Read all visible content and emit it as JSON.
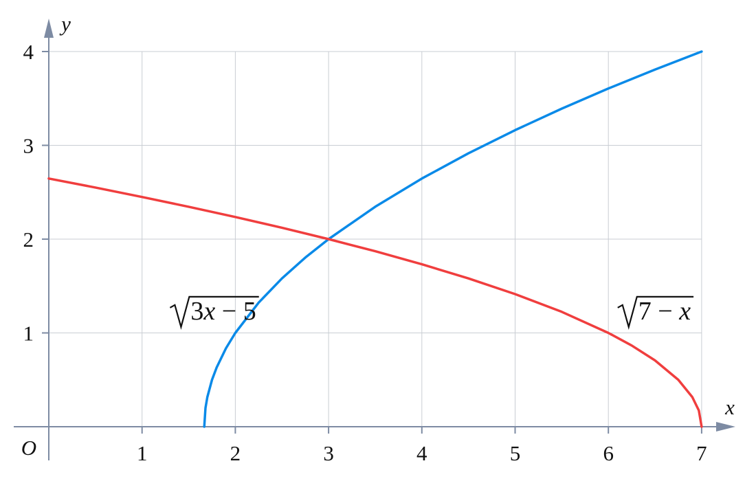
{
  "chart_data": {
    "type": "line",
    "title": "",
    "xlabel": "x",
    "ylabel": "y",
    "origin_label": "O",
    "xlim": [
      0,
      7.35
    ],
    "ylim": [
      0,
      4.2
    ],
    "x_ticks": [
      1,
      2,
      3,
      4,
      5,
      6,
      7
    ],
    "y_ticks": [
      1,
      2,
      3,
      4
    ],
    "grid": true,
    "colors": {
      "axis": "#7d8ba3",
      "grid": "#c9cdd3"
    },
    "series": [
      {
        "label": "√3x − 5",
        "label_parts": [
          "3",
          "x",
          " − 5"
        ],
        "label_anchor": [
          1.3,
          1.1
        ],
        "color": "#0a8ae8",
        "x": [
          1.667,
          1.68,
          1.7,
          1.75,
          1.8,
          1.9,
          2.0,
          2.25,
          2.5,
          2.75,
          3.0,
          3.5,
          4.0,
          4.5,
          5.0,
          5.5,
          6.0,
          6.5,
          7.0
        ],
        "y": [
          0.0,
          0.2,
          0.316,
          0.5,
          0.632,
          0.837,
          1.0,
          1.323,
          1.581,
          1.803,
          2.0,
          2.345,
          2.646,
          2.915,
          3.162,
          3.391,
          3.606,
          3.808,
          4.0
        ]
      },
      {
        "label": "√7 − x",
        "label_parts": [
          "7 − ",
          "x",
          ""
        ],
        "label_anchor": [
          6.1,
          1.1
        ],
        "color": "#f03e3e",
        "x": [
          0.0,
          0.5,
          1.0,
          1.5,
          2.0,
          2.5,
          3.0,
          3.5,
          4.0,
          4.5,
          5.0,
          5.5,
          6.0,
          6.25,
          6.5,
          6.75,
          6.9,
          6.97,
          7.0
        ],
        "y": [
          2.646,
          2.55,
          2.449,
          2.345,
          2.236,
          2.121,
          2.0,
          1.871,
          1.732,
          1.581,
          1.414,
          1.225,
          1.0,
          0.866,
          0.707,
          0.5,
          0.316,
          0.173,
          0.0
        ]
      }
    ]
  }
}
